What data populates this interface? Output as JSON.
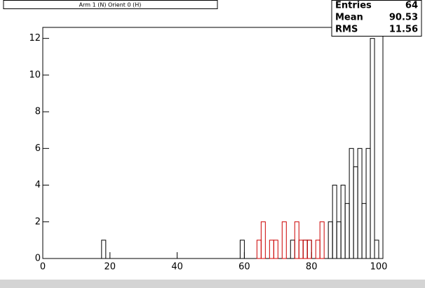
{
  "chart_data": {
    "type": "histogram",
    "title": "Arm 1 (N) Orient 0 (H)",
    "bins": [
      0,
      1.25,
      2.5,
      3.75,
      5,
      6.25,
      7.5,
      8.75,
      10,
      11.25,
      12.5,
      13.75,
      15,
      16.25,
      17.5,
      18.75,
      20,
      21.25,
      22.5,
      23.75,
      25,
      26.25,
      27.5,
      28.75,
      30,
      31.25,
      32.5,
      33.75,
      35,
      36.25,
      37.5,
      38.75,
      40,
      41.25,
      42.5,
      43.75,
      45,
      46.25,
      47.5,
      48.75,
      50,
      51.25,
      52.5,
      53.75,
      55,
      56.25,
      57.5,
      58.75,
      60,
      61.25,
      62.5,
      63.75,
      65,
      66.25,
      67.5,
      68.75,
      70,
      71.25,
      72.5,
      73.75,
      75,
      76.25,
      77.5,
      78.75,
      80,
      81.25,
      82.5,
      83.75,
      85,
      86.25,
      87.5,
      88.75,
      90,
      91.25,
      92.5,
      93.75,
      95,
      96.25,
      97.5,
      98.75,
      100,
      101.25
    ],
    "series": [
      {
        "color": "#000000",
        "values": [
          0,
          0,
          0,
          0,
          0,
          0,
          0,
          0,
          0,
          0,
          0,
          0,
          0,
          0,
          1,
          0,
          0,
          0,
          0,
          0,
          0,
          0,
          0,
          0,
          0,
          0,
          0,
          0,
          0,
          0,
          0,
          0,
          0,
          0,
          0,
          0,
          0,
          0,
          0,
          0,
          0,
          0,
          0,
          0,
          0,
          0,
          0,
          1,
          0,
          0,
          0,
          0,
          0,
          0,
          0,
          0,
          0,
          0,
          0,
          1,
          0,
          0,
          1,
          1,
          0,
          0,
          0,
          0,
          2,
          4,
          2,
          4,
          3,
          6,
          5,
          6,
          3,
          6,
          12,
          1,
          0
        ]
      },
      {
        "color": "#cc0000",
        "values": [
          0,
          0,
          0,
          0,
          0,
          0,
          0,
          0,
          0,
          0,
          0,
          0,
          0,
          0,
          0,
          0,
          0,
          0,
          0,
          0,
          0,
          0,
          0,
          0,
          0,
          0,
          0,
          0,
          0,
          0,
          0,
          0,
          0,
          0,
          0,
          0,
          0,
          0,
          0,
          0,
          0,
          0,
          0,
          0,
          0,
          0,
          0,
          0,
          0,
          0,
          0,
          1,
          2,
          0,
          1,
          1,
          0,
          2,
          0,
          0,
          2,
          1,
          1,
          1,
          0,
          1,
          2,
          0,
          0,
          0,
          0,
          0,
          0,
          0,
          0,
          0,
          0,
          0,
          0,
          0,
          0
        ]
      }
    ],
    "xlim": [
      0,
      101.25
    ],
    "xticks": [
      0,
      20,
      40,
      60,
      80,
      100
    ],
    "ylim": [
      0,
      12.6
    ],
    "yticks": [
      0,
      2,
      4,
      6,
      8,
      10,
      12
    ],
    "stats": [
      {
        "label": "Entries",
        "value": "64"
      },
      {
        "label": "Mean",
        "value": "90.53"
      },
      {
        "label": "RMS",
        "value": "11.56"
      }
    ]
  }
}
